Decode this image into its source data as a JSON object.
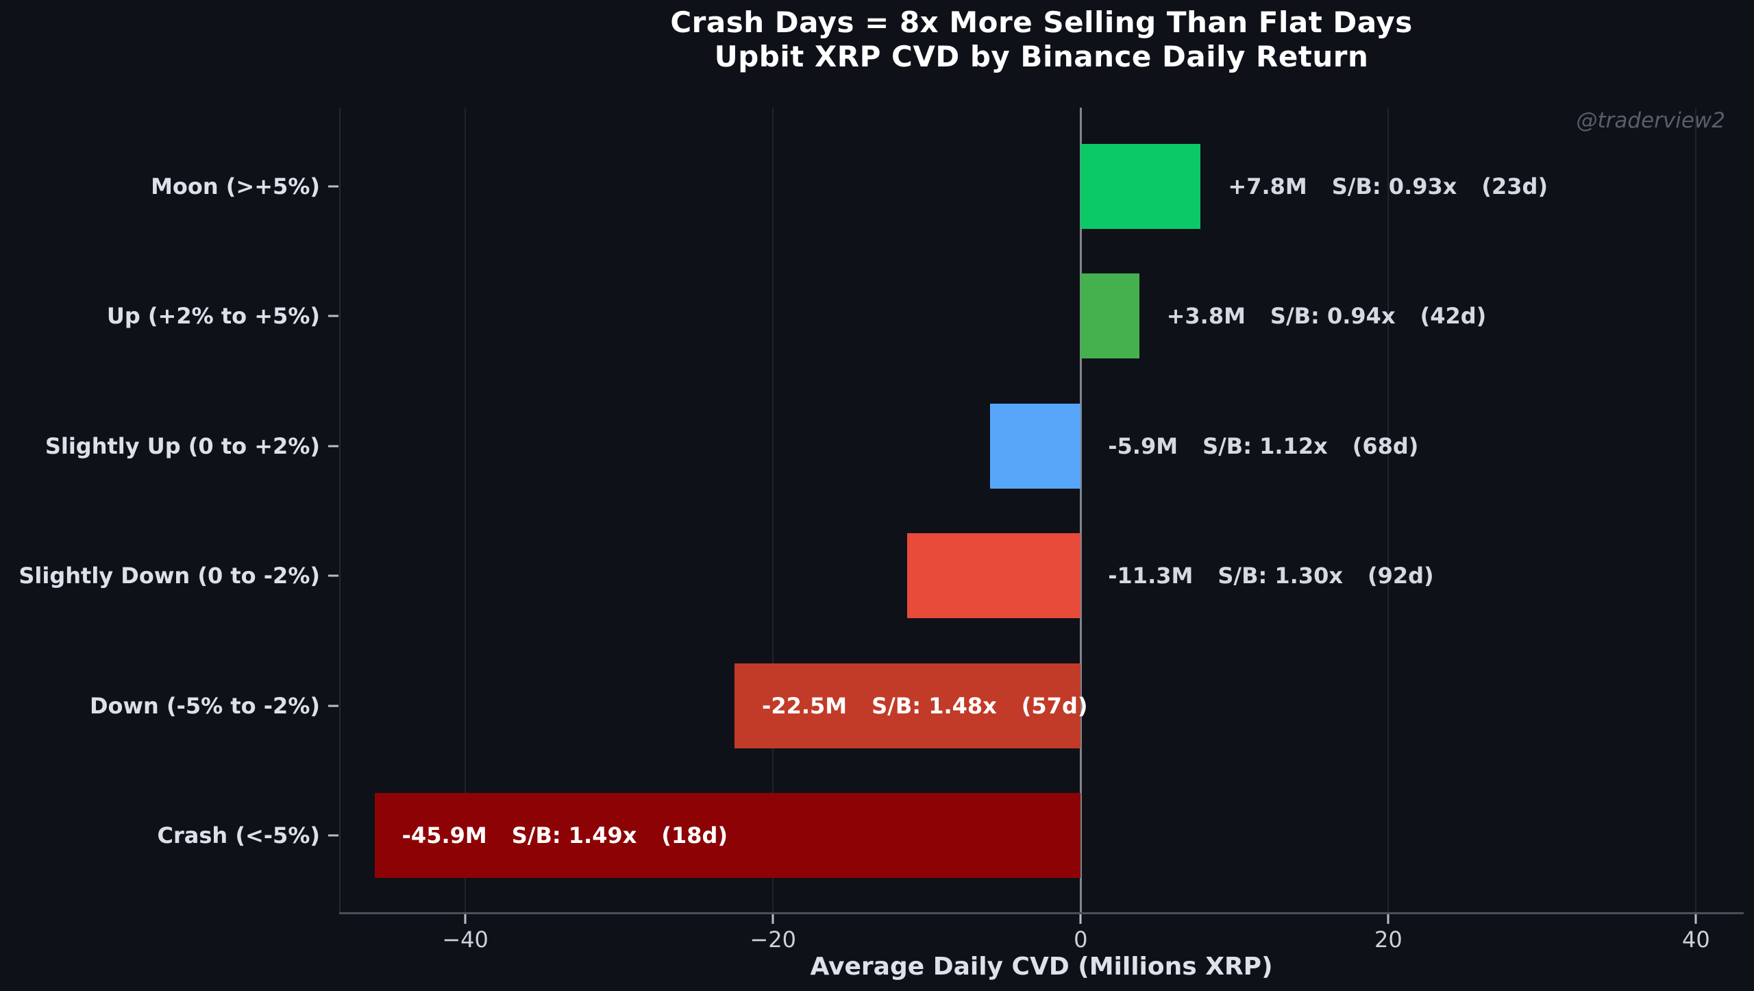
{
  "title": {
    "line1": "Crash Days = 8x More Selling Than Flat Days",
    "line2": "Upbit XRP CVD by Binance Daily Return"
  },
  "watermark": "@traderview2",
  "colors": {
    "background": "#0e1118",
    "title_text": "#ffffff",
    "axis_text": "#dce1e9",
    "tick_text": "#ccd1da",
    "annotation_outside_text": "#d5dae2",
    "annotation_inside_text": "#ffffff",
    "zero_line": "#80858e",
    "gridline": "#1e232d",
    "watermark_text": "#575e6c",
    "moon_green": "#0cc968",
    "up_green": "#45b14e",
    "slightly_up_blue": "#58a6fa",
    "slightly_down_red": "#e84b3a",
    "down_red": "#c23a28",
    "crash_dark_red": "#8d0305"
  },
  "chart_data": {
    "type": "bar",
    "orientation": "horizontal",
    "title": "Crash Days = 8x More Selling Than Flat Days",
    "subtitle": "Upbit XRP CVD by Binance Daily Return",
    "xlabel": "Average Daily CVD (Millions XRP)",
    "ylabel": "",
    "xlim": [
      -48.2,
      43.1
    ],
    "xticks": [
      -40,
      -20,
      0,
      20,
      40
    ],
    "xtick_labels": [
      "−40",
      "−20",
      "0",
      "20",
      "40"
    ],
    "grid": "faint vertical gridlines at xticks, emphasized vertical line at 0, bottom spine only",
    "legend": "none",
    "categories": [
      "Moon (>+5%)",
      "Up (+2% to +5%)",
      "Slightly Up (0 to +2%)",
      "Slightly Down (0 to -2%)",
      "Down (-5% to -2%)",
      "Crash (<-5%)"
    ],
    "values": [
      7.8,
      3.8,
      -5.9,
      -11.3,
      -22.5,
      -45.9
    ],
    "rows": [
      {
        "category": "Moon (>+5%)",
        "avg_daily_cvd_millions": 7.8,
        "value_label": "+7.8M",
        "sell_buy_label": "S/B: 0.93x",
        "days_label": "(23d)",
        "color": "#0cc968",
        "annotation_placement": "outside"
      },
      {
        "category": "Up (+2% to +5%)",
        "avg_daily_cvd_millions": 3.8,
        "value_label": "+3.8M",
        "sell_buy_label": "S/B: 0.94x",
        "days_label": "(42d)",
        "color": "#45b14e",
        "annotation_placement": "outside"
      },
      {
        "category": "Slightly Up (0 to +2%)",
        "avg_daily_cvd_millions": -5.9,
        "value_label": "-5.9M",
        "sell_buy_label": "S/B: 1.12x",
        "days_label": "(68d)",
        "color": "#58a6fa",
        "annotation_placement": "outside"
      },
      {
        "category": "Slightly Down (0 to -2%)",
        "avg_daily_cvd_millions": -11.3,
        "value_label": "-11.3M",
        "sell_buy_label": "S/B: 1.30x",
        "days_label": "(92d)",
        "color": "#e84b3a",
        "annotation_placement": "outside"
      },
      {
        "category": "Down (-5% to -2%)",
        "avg_daily_cvd_millions": -22.5,
        "value_label": "-22.5M",
        "sell_buy_label": "S/B: 1.48x",
        "days_label": "(57d)",
        "color": "#c23a28",
        "annotation_placement": "inside"
      },
      {
        "category": "Crash (<-5%)",
        "avg_daily_cvd_millions": -45.9,
        "value_label": "-45.9M",
        "sell_buy_label": "S/B: 1.49x",
        "days_label": "(18d)",
        "color": "#8d0305",
        "annotation_placement": "inside"
      }
    ]
  }
}
